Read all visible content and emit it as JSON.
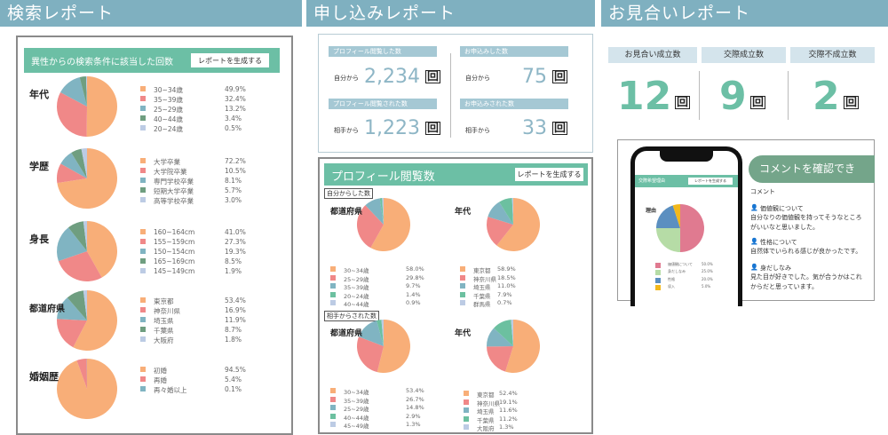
{
  "search_report": {
    "title": "検索レポート",
    "panel_title": "異性からの検索条件に該当した回数",
    "generate_button": "レポートを生成する"
  },
  "application_report": {
    "title": "申し込みレポート",
    "stats": [
      {
        "label": "プロフィール閲覧した数",
        "from": "自分から",
        "value": "2,234",
        "unit": "回"
      },
      {
        "label": "プロフィール閲覧された数",
        "from": "相手から",
        "value": "1,223",
        "unit": "回"
      },
      {
        "label": "お申込みした数",
        "from": "自分から",
        "value": "75",
        "unit": "回"
      },
      {
        "label": "お申込みされた数",
        "from": "相手から",
        "value": "33",
        "unit": "回"
      }
    ],
    "views_panel_title": "プロフィール閲覧数",
    "generate_button": "レポートを生成する",
    "sub_own": "自分からした数",
    "sub_other": "相手からされた数"
  },
  "omiai_report": {
    "title": "お見合いレポート",
    "stats": [
      {
        "label": "お見合い成立数",
        "value": "12",
        "unit": "回"
      },
      {
        "label": "交際成立数",
        "value": "9",
        "unit": "回"
      },
      {
        "label": "交際不成立数",
        "value": "2",
        "unit": "回"
      }
    ],
    "phone": {
      "header": "交際希望理由",
      "generate_button": "レポートを生成する",
      "chart_label": "理由"
    },
    "banner": "コメントを確認できる！",
    "comment_heading": "コメント",
    "comments": [
      {
        "title": "価値観について",
        "text": "自分なりの価値観を持ってそうなところがいいなと思いました。"
      },
      {
        "title": "性格について",
        "text": "自然体でいられる感じが良かったです。"
      },
      {
        "title": "身だしなみ",
        "text": "見た目が好きでした。気が合うかはこれからだと思っています。"
      }
    ]
  },
  "colors": {
    "header": "#7fb0c0",
    "accent_green": "#6cbfa5",
    "slices": [
      "#f8ae78",
      "#f08888",
      "#80b4c2",
      "#6f9e80",
      "#bccbe4"
    ],
    "slices_mid": [
      "#f8ae78",
      "#f08888",
      "#80b4c2",
      "#6cc0a0",
      "#bccbe4"
    ],
    "phone_slices": [
      "#e07a90",
      "#b6dca6",
      "#5b8fc0",
      "#f2b81c"
    ]
  },
  "chart_data": [
    {
      "type": "pie",
      "title": "年代",
      "categories": [
        "30~34歳",
        "35~39歳",
        "25~29歳",
        "40~44歳",
        "20~24歳"
      ],
      "values": [
        49.9,
        32.4,
        13.2,
        3.4,
        0.5
      ]
    },
    {
      "type": "pie",
      "title": "学歴",
      "categories": [
        "大学卒業",
        "大学院卒業",
        "専門学校卒業",
        "短期大学卒業",
        "高等学校卒業"
      ],
      "values": [
        72.2,
        10.5,
        8.1,
        5.7,
        3.0
      ]
    },
    {
      "type": "pie",
      "title": "身長",
      "categories": [
        "160~164cm",
        "155~159cm",
        "150~154cm",
        "165~169cm",
        "145~149cm"
      ],
      "values": [
        41.0,
        27.3,
        19.3,
        8.5,
        1.9
      ]
    },
    {
      "type": "pie",
      "title": "都道府県",
      "categories": [
        "東京都",
        "神奈川県",
        "埼玉県",
        "千葉県",
        "大阪府"
      ],
      "values": [
        53.4,
        16.9,
        11.9,
        8.7,
        1.8
      ]
    },
    {
      "type": "pie",
      "title": "婚姻歴",
      "categories": [
        "初婚",
        "再婚",
        "再々婚以上"
      ],
      "values": [
        94.5,
        5.4,
        0.1
      ]
    },
    {
      "type": "pie",
      "title": "年代",
      "group": "自分からした数",
      "categories": [
        "30~34歳",
        "25~29歳",
        "35~39歳",
        "20~24歳",
        "40~44歳"
      ],
      "values": [
        58.0,
        29.8,
        9.7,
        1.4,
        0.9
      ]
    },
    {
      "type": "pie",
      "title": "都道府県",
      "group": "自分からした数",
      "categories": [
        "東京都",
        "神奈川県",
        "埼玉県",
        "千葉県",
        "群馬県"
      ],
      "values": [
        58.9,
        18.5,
        11.0,
        7.9,
        0.7
      ]
    },
    {
      "type": "pie",
      "title": "年代",
      "group": "相手からされた数",
      "categories": [
        "30~34歳",
        "35~39歳",
        "25~29歳",
        "40~44歳",
        "45~49歳"
      ],
      "values": [
        53.4,
        26.7,
        14.8,
        2.9,
        1.3
      ]
    },
    {
      "type": "pie",
      "title": "都道府県",
      "group": "相手からされた数",
      "categories": [
        "東京都",
        "神奈川県",
        "埼玉県",
        "千葉県",
        "大阪府"
      ],
      "values": [
        52.4,
        19.1,
        11.6,
        11.2,
        1.3
      ]
    },
    {
      "type": "pie",
      "title": "理由",
      "categories": [
        "価値観について",
        "身だしなみ",
        "性格",
        "収入"
      ],
      "values": [
        50.0,
        25.0,
        20.0,
        5.0
      ]
    }
  ]
}
